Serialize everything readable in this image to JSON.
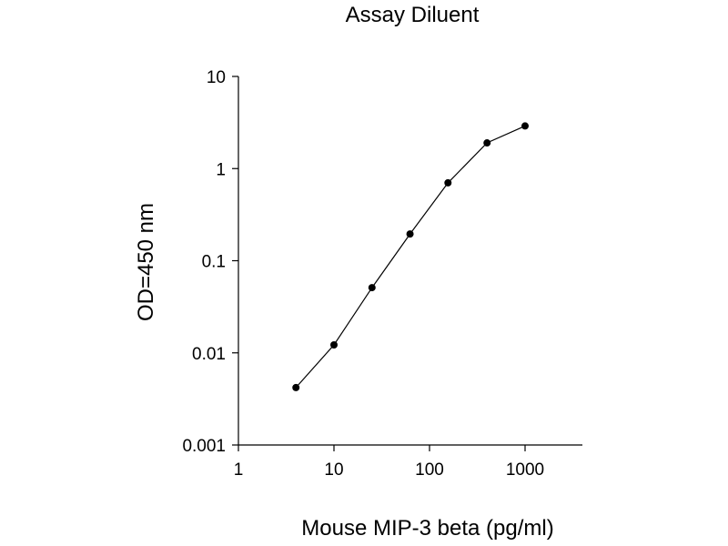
{
  "chart_data": {
    "type": "line",
    "title": "Assay Diluent",
    "xlabel": "Mouse MIP-3 beta (pg/ml)",
    "ylabel": "OD=450 nm",
    "x_scale": "log",
    "y_scale": "log",
    "xlim": [
      1,
      10000
    ],
    "ylim": [
      0.001,
      10
    ],
    "x_ticks": [
      "1",
      "10",
      "100",
      "1000"
    ],
    "x_tick_values": [
      1,
      10,
      100,
      1000
    ],
    "y_ticks": [
      "0.001",
      "0.01",
      "0.1",
      "1",
      "10"
    ],
    "y_tick_values": [
      0.001,
      0.01,
      0.1,
      1,
      10
    ],
    "grid": false,
    "series": [
      {
        "x": [
          4,
          10,
          25,
          62.5,
          156,
          400,
          1000
        ],
        "y": [
          0.0042,
          0.0122,
          0.051,
          0.195,
          0.7,
          1.9,
          2.9
        ]
      }
    ]
  }
}
